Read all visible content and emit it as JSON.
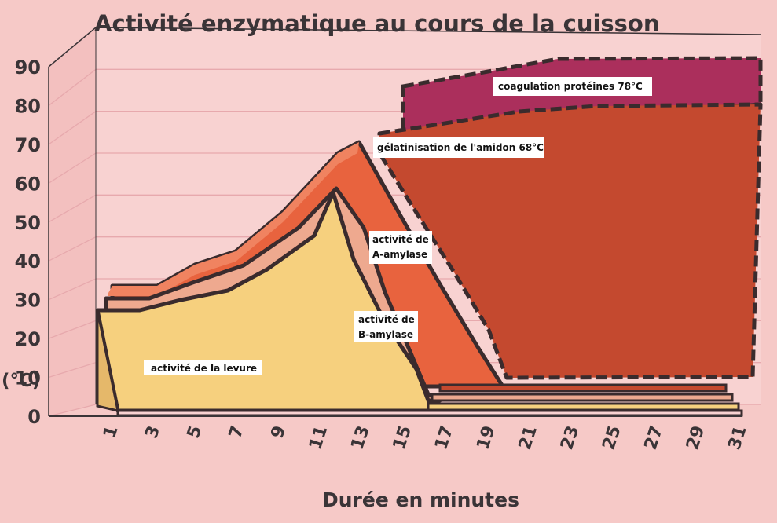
{
  "chart_data": {
    "type": "area",
    "title": "Activité enzymatique au cours de la cuisson",
    "xlabel": "Durée en minutes",
    "ylabel": "(°C)",
    "ylim": [
      0,
      90
    ],
    "xlim": [
      1,
      31
    ],
    "x_ticks": [
      "1",
      "3",
      "5",
      "7",
      "9",
      "11",
      "13",
      "15",
      "17",
      "19",
      "21",
      "23",
      "25",
      "27",
      "29",
      "31"
    ],
    "y_ticks": [
      "0",
      "10",
      "20",
      "30",
      "40",
      "50",
      "60",
      "70",
      "80",
      "90"
    ],
    "grid": true,
    "series": [
      {
        "name": "activité de la levure",
        "color": "#f6d07e",
        "x": [
          1,
          2,
          3,
          4,
          5,
          6,
          7,
          8,
          9,
          10,
          11,
          12,
          13,
          14,
          15,
          16
        ],
        "y": [
          27,
          27,
          28,
          30,
          31,
          32,
          35,
          38,
          41,
          44,
          56,
          42,
          28,
          14,
          4,
          0
        ]
      },
      {
        "name": "activité de B-amylase",
        "color": "#eea98f",
        "x": [
          1,
          2,
          3,
          4,
          5,
          6,
          7,
          8,
          9,
          10,
          11,
          12,
          13,
          14,
          15,
          16,
          17
        ],
        "y": [
          29,
          29,
          30,
          32,
          35,
          37,
          39,
          42,
          46,
          51,
          56,
          46,
          33,
          20,
          9,
          2,
          0
        ]
      },
      {
        "name": "activité de A-amylase",
        "color": "#e8633e",
        "x": [
          1,
          2,
          3,
          4,
          5,
          6,
          7,
          8,
          9,
          10,
          11,
          12,
          13,
          14,
          15,
          16,
          17,
          18,
          19
        ],
        "y": [
          31,
          31,
          31,
          34,
          38,
          40,
          43,
          48,
          53,
          58,
          63,
          65,
          55,
          44,
          33,
          22,
          12,
          4,
          0
        ]
      },
      {
        "name": "gélatinisation de l'amidon  68°C",
        "color": "#c4492f",
        "x": [
          13,
          31
        ],
        "y": [
          68,
          68
        ]
      },
      {
        "name": "coagulation protéines  78°C",
        "color": "#ab2f5c",
        "x": [
          15,
          31
        ],
        "y": [
          78,
          78
        ]
      }
    ],
    "annotations": [
      "activité de la levure",
      "activité de B-amylase",
      "activité de A-amylase",
      "gélatinisation de l'amidon  68°C",
      "coagulation protéines  78°C"
    ]
  },
  "labels": {
    "yeast": "activité de la levure",
    "bamylase_line1": "activité de",
    "bamylase_line2": "B-amylase",
    "aamylase_line1": "activité de",
    "aamylase_line2": "A-amylase",
    "gelatin": "gélatinisation de l'amidon  68°C",
    "coag": "coagulation protéines  78°C"
  }
}
